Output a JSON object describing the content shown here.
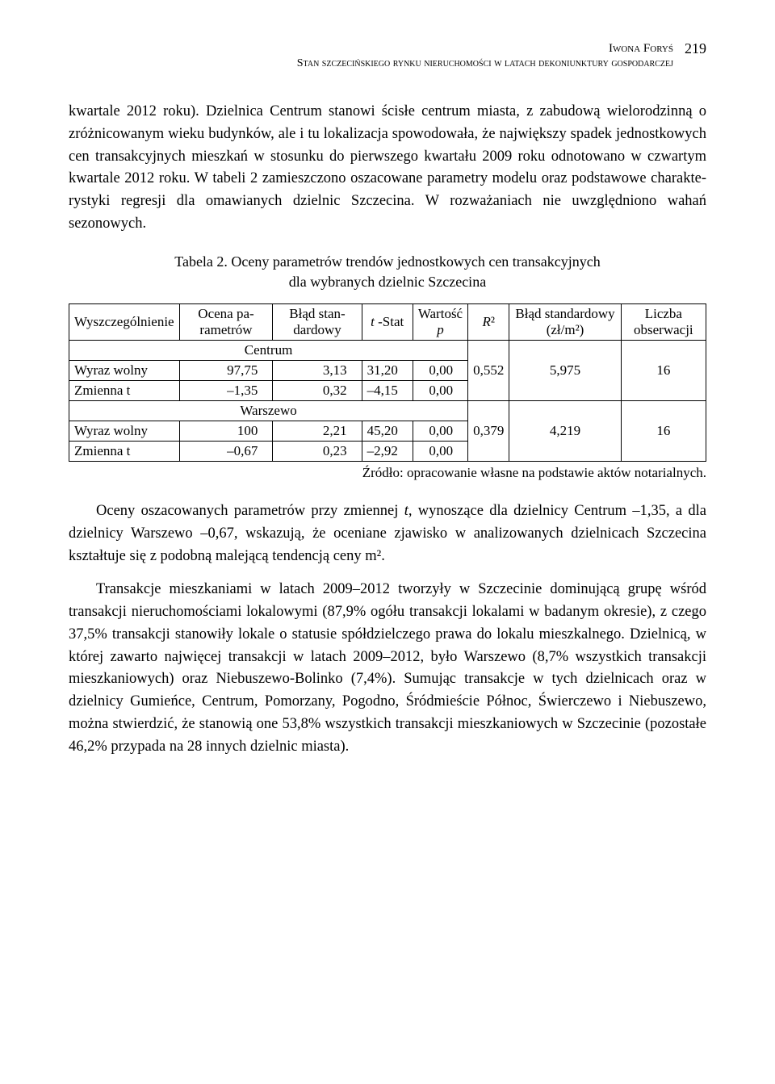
{
  "header": {
    "author": "Iwona Foryś",
    "title": "Stan szczecińskiego rynku nieruchomości w latach dekoniunktury gospodarczej",
    "page_number": "219"
  },
  "para1": "kwartale 2012 roku). Dzielnica Centrum stanowi ścisłe centrum miasta, z zabudową wielorodzinną o zróżnicowanym wieku budynków, ale i tu lokalizacja spowodowa­ła, że największy spadek jednostkowych cen transakcyjnych mieszkań w stosunku do pierwszego kwartału 2009 roku odnotowano w  czwartym kwartale 2012 roku. W tabeli 2 zamieszczono oszacowane parametry modelu oraz podstawowe charakte­rystyki regresji dla omawianych dzielnic Szczecina. W rozważaniach nie uwzględ­niono wahań sezonowych.",
  "table": {
    "caption_line1": "Tabela 2. Oceny parametrów trendów jednostkowych cen transakcyjnych",
    "caption_line2": "dla wybranych dzielnic Szczecina",
    "columns": {
      "c1": "Wyszczególnienie",
      "c2": "Ocena pa­rametrów",
      "c3": "Błąd stan­dardowy",
      "c4_html": "<i>t</i> -Stat",
      "c5_line1": "Wartość",
      "c5_line2_html": "<i>p</i>",
      "c6_html": "<i>R</i>²",
      "c7": "Błąd standar­dowy (zł/m²)",
      "c8": "Liczba obser­wacji"
    },
    "sections": [
      {
        "label": "Centrum",
        "rows": [
          {
            "name": "Wyraz wolny",
            "ocena": "97,75",
            "blad": "3,13",
            "tstat": "31,20",
            "p": "0,00",
            "r2": "0,552",
            "blad2": "5,975",
            "n": "16"
          },
          {
            "name": "Zmienna t",
            "ocena": "–1,35",
            "blad": "0,32",
            "tstat": "–4,15",
            "p": "0,00"
          }
        ]
      },
      {
        "label": "Warszewo",
        "rows": [
          {
            "name": "Wyraz wolny",
            "ocena": "100",
            "blad": "2,21",
            "tstat": "45,20",
            "p": "0,00",
            "r2": "0,379",
            "blad2": "4,219",
            "n": "16"
          },
          {
            "name": "Zmienna t",
            "ocena": "–0,67",
            "blad": "0,23",
            "tstat": "–2,92",
            "p": "0,00"
          }
        ]
      }
    ],
    "source": "Źródło: opracowanie własne na podstawie aktów notarialnych."
  },
  "para2_html": "Oceny oszacowanych parametrów przy zmiennej <i>t</i>, wynoszące dla dzielnicy Centrum –1,35, a dla dzielnicy Warszewo –0,67, wskazują, że oceniane zjawisko w analizowanych dzielnicach Szczecina kształtuje się z podobną malejącą tendencją ceny m².",
  "para3": "Transakcje mieszkaniami w latach 2009–2012 tworzyły w Szczecinie dominu­jącą grupę wśród transakcji nieruchomościami lokalowymi (87,9% ogółu transakcji lokalami w badanym okresie), z czego 37,5% transakcji stanowiły lokale o statu­sie spółdzielczego prawa do lokalu mieszkalnego. Dzielnicą, w której zawarto naj­więcej transakcji w latach 2009–2012, było Warszewo (8,7% wszystkich transakcji mieszkaniowych) oraz Niebuszewo-Bolinko (7,4%). Sumując transakcje w tych dzielnicach oraz w dzielnicy Gumieńce, Centrum, Pomorzany, Pogodno, Śródmie­ście Północ, Świerczewo i Niebuszewo, można stwierdzić, że stanowią one 53,8% wszystkich transakcji mieszkaniowych w Szczecinie (pozostałe 46,2% przypada na 28 innych dzielnic miasta)."
}
